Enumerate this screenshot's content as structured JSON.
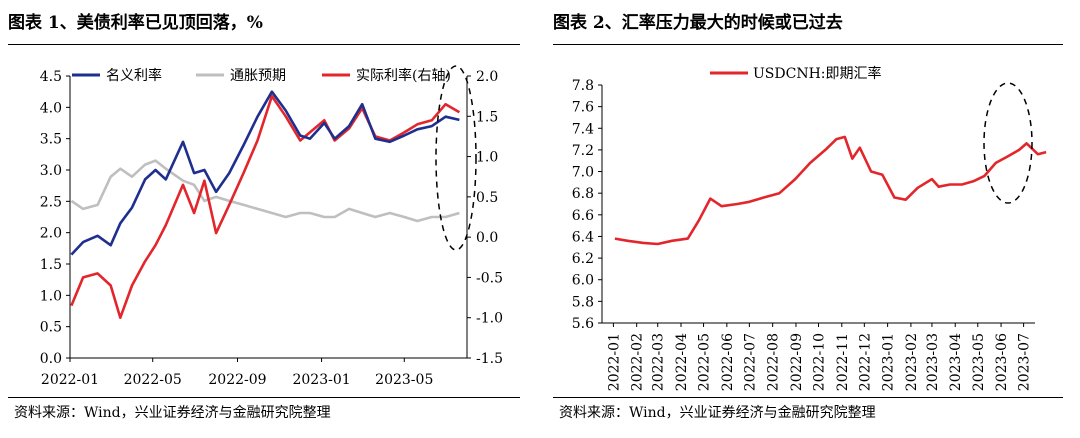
{
  "left": {
    "title": "图表 1、美债利率已见顶回落，%",
    "source": "资料来源：Wind，兴业证券经济与金融研究院整理",
    "chart_data": {
      "type": "line",
      "yaxis_left": {
        "ylim": [
          0,
          4.5
        ],
        "ticks": [
          "0.0",
          "0.5",
          "1.0",
          "1.5",
          "2.0",
          "2.5",
          "3.0",
          "3.5",
          "4.0",
          "4.5"
        ]
      },
      "yaxis_right": {
        "ylim": [
          -1.5,
          2.0
        ],
        "ticks": [
          "-1.5",
          "-1.0",
          "-0.5",
          "0.0",
          "0.5",
          "1.0",
          "1.5",
          "2.0"
        ]
      },
      "x_ticks": [
        "2022-01",
        "2022-05",
        "2022-09",
        "2023-01",
        "2023-05"
      ],
      "x_range": [
        "2022-01-01",
        "2023-07-31"
      ],
      "grid": false,
      "legend_position": "top",
      "annotation": "dashed ellipse around 2023-06 to 2023-07",
      "series": [
        {
          "name": "名义利率",
          "color": "#1f2f8f",
          "axis": "left",
          "x": [
            "2022-01-03",
            "2022-01-20",
            "2022-02-10",
            "2022-03-01",
            "2022-03-15",
            "2022-04-01",
            "2022-04-20",
            "2022-05-05",
            "2022-05-20",
            "2022-06-14",
            "2022-06-30",
            "2022-07-15",
            "2022-08-01",
            "2022-08-20",
            "2022-09-10",
            "2022-09-30",
            "2022-10-21",
            "2022-11-10",
            "2022-12-01",
            "2022-12-15",
            "2023-01-05",
            "2023-01-20",
            "2023-02-10",
            "2023-03-01",
            "2023-03-20",
            "2023-04-10",
            "2023-05-01",
            "2023-05-20",
            "2023-06-10",
            "2023-06-30",
            "2023-07-20"
          ],
          "y": [
            1.65,
            1.85,
            1.95,
            1.8,
            2.15,
            2.4,
            2.85,
            3.0,
            2.85,
            3.45,
            2.95,
            3.0,
            2.65,
            2.95,
            3.4,
            3.85,
            4.25,
            3.95,
            3.55,
            3.5,
            3.75,
            3.5,
            3.7,
            4.05,
            3.5,
            3.45,
            3.55,
            3.65,
            3.7,
            3.85,
            3.8
          ]
        },
        {
          "name": "通胀预期",
          "color": "#bfbfbf",
          "axis": "right",
          "x": [
            "2022-01-03",
            "2022-01-20",
            "2022-02-10",
            "2022-03-01",
            "2022-03-15",
            "2022-04-01",
            "2022-04-20",
            "2022-05-05",
            "2022-05-20",
            "2022-06-14",
            "2022-06-30",
            "2022-07-15",
            "2022-08-01",
            "2022-08-20",
            "2022-09-10",
            "2022-09-30",
            "2022-10-21",
            "2022-11-10",
            "2022-12-01",
            "2022-12-15",
            "2023-01-05",
            "2023-01-20",
            "2023-02-10",
            "2023-03-01",
            "2023-03-20",
            "2023-04-10",
            "2023-05-01",
            "2023-05-20",
            "2023-06-10",
            "2023-06-30",
            "2023-07-20"
          ],
          "y": [
            0.45,
            0.35,
            0.4,
            0.75,
            0.85,
            0.75,
            0.9,
            0.95,
            0.85,
            0.7,
            0.65,
            0.45,
            0.5,
            0.45,
            0.4,
            0.35,
            0.3,
            0.25,
            0.3,
            0.3,
            0.25,
            0.25,
            0.35,
            0.3,
            0.25,
            0.3,
            0.25,
            0.2,
            0.25,
            0.25,
            0.3
          ]
        },
        {
          "name": "实际利率(右轴)",
          "color": "#e3262b",
          "axis": "right",
          "x": [
            "2022-01-03",
            "2022-01-20",
            "2022-02-10",
            "2022-03-01",
            "2022-03-15",
            "2022-04-01",
            "2022-04-20",
            "2022-05-05",
            "2022-05-20",
            "2022-06-14",
            "2022-06-30",
            "2022-07-15",
            "2022-08-01",
            "2022-08-20",
            "2022-09-10",
            "2022-09-30",
            "2022-10-21",
            "2022-11-10",
            "2022-12-01",
            "2022-12-15",
            "2023-01-05",
            "2023-01-20",
            "2023-02-10",
            "2023-03-01",
            "2023-03-20",
            "2023-04-10",
            "2023-05-01",
            "2023-05-20",
            "2023-06-10",
            "2023-06-30",
            "2023-07-20"
          ],
          "y": [
            -0.85,
            -0.5,
            -0.45,
            -0.6,
            -1.0,
            -0.6,
            -0.3,
            -0.1,
            0.15,
            0.65,
            0.3,
            0.7,
            0.05,
            0.4,
            0.8,
            1.2,
            1.75,
            1.5,
            1.2,
            1.3,
            1.45,
            1.2,
            1.35,
            1.6,
            1.25,
            1.2,
            1.3,
            1.4,
            1.45,
            1.65,
            1.55
          ]
        }
      ]
    }
  },
  "right": {
    "title": "图表 2、汇率压力最大的时候或已过去",
    "source": "资料来源：Wind，兴业证券经济与金融研究院整理",
    "chart_data": {
      "type": "line",
      "ylim": [
        5.6,
        7.8
      ],
      "y_ticks": [
        "5.6",
        "5.8",
        "6.0",
        "6.2",
        "6.4",
        "6.6",
        "6.8",
        "7.0",
        "7.2",
        "7.4",
        "7.6",
        "7.8"
      ],
      "x_ticks": [
        "2022-01",
        "2022-02",
        "2022-03",
        "2022-04",
        "2022-05",
        "2022-06",
        "2022-07",
        "2022-08",
        "2022-09",
        "2022-10",
        "2022-11",
        "2022-12",
        "2023-01",
        "2023-02",
        "2023-03",
        "2023-04",
        "2023-05",
        "2023-06",
        "2023-07"
      ],
      "grid": false,
      "legend_position": "top",
      "annotation": "dashed ellipse around 2023-06 to 2023-07",
      "series": [
        {
          "name": "USDCNH:即期汇率",
          "color": "#e3262b",
          "x": [
            "2022-01-03",
            "2022-01-20",
            "2022-02-10",
            "2022-03-01",
            "2022-03-20",
            "2022-04-10",
            "2022-04-25",
            "2022-05-10",
            "2022-05-25",
            "2022-06-15",
            "2022-07-01",
            "2022-07-20",
            "2022-08-10",
            "2022-08-31",
            "2022-09-20",
            "2022-10-10",
            "2022-10-25",
            "2022-11-05",
            "2022-11-15",
            "2022-11-25",
            "2022-12-10",
            "2022-12-25",
            "2023-01-10",
            "2023-01-25",
            "2023-02-10",
            "2023-03-01",
            "2023-03-10",
            "2023-03-25",
            "2023-04-10",
            "2023-04-25",
            "2023-05-10",
            "2023-05-25",
            "2023-06-10",
            "2023-06-25",
            "2023-07-05",
            "2023-07-20",
            "2023-07-31"
          ],
          "y": [
            6.38,
            6.36,
            6.34,
            6.33,
            6.36,
            6.38,
            6.55,
            6.75,
            6.68,
            6.7,
            6.72,
            6.76,
            6.8,
            6.93,
            7.08,
            7.2,
            7.3,
            7.32,
            7.12,
            7.22,
            7.0,
            6.97,
            6.76,
            6.74,
            6.85,
            6.93,
            6.86,
            6.88,
            6.88,
            6.91,
            6.96,
            7.08,
            7.14,
            7.2,
            7.26,
            7.16,
            7.18
          ]
        }
      ]
    }
  }
}
